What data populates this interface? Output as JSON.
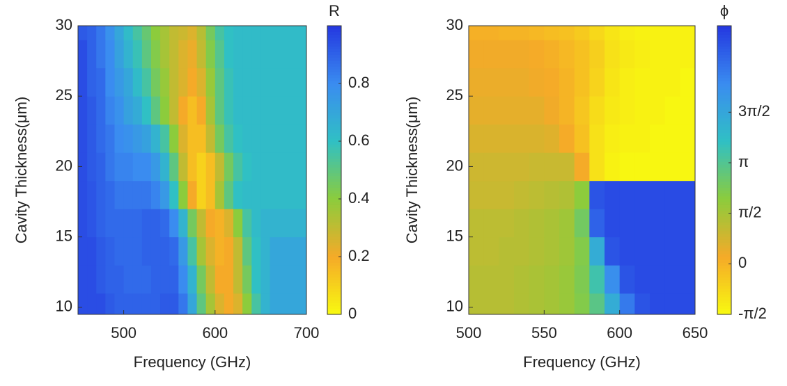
{
  "chart_data": [
    {
      "type": "heatmap",
      "xlabel": "Frequency (GHz)",
      "ylabel": "Cavity Thickness(μm)",
      "colorbar_label": "R",
      "x": [
        455,
        465,
        475,
        485,
        495,
        505,
        515,
        525,
        535,
        545,
        555,
        565,
        575,
        585,
        595,
        605,
        615,
        625,
        635,
        645,
        655,
        665,
        675,
        685,
        695
      ],
      "y": [
        10,
        12,
        14,
        16,
        18,
        20,
        22,
        24,
        26,
        28,
        30
      ],
      "values": [
        [
          0.95,
          0.95,
          0.95,
          0.92,
          0.9,
          0.9,
          0.9,
          0.9,
          0.9,
          0.92,
          0.92,
          0.85,
          0.7,
          0.5,
          0.35,
          0.25,
          0.2,
          0.25,
          0.4,
          0.55,
          0.65,
          0.7,
          0.7,
          0.7,
          0.7
        ],
        [
          0.95,
          0.95,
          0.92,
          0.9,
          0.9,
          0.88,
          0.88,
          0.88,
          0.9,
          0.9,
          0.9,
          0.8,
          0.65,
          0.45,
          0.3,
          0.2,
          0.2,
          0.3,
          0.45,
          0.6,
          0.65,
          0.7,
          0.7,
          0.7,
          0.7
        ],
        [
          0.95,
          0.95,
          0.92,
          0.9,
          0.88,
          0.88,
          0.88,
          0.9,
          0.9,
          0.9,
          0.88,
          0.75,
          0.55,
          0.35,
          0.25,
          0.18,
          0.2,
          0.3,
          0.5,
          0.6,
          0.65,
          0.7,
          0.7,
          0.7,
          0.7
        ],
        [
          0.95,
          0.93,
          0.9,
          0.88,
          0.88,
          0.88,
          0.88,
          0.9,
          0.9,
          0.88,
          0.8,
          0.65,
          0.45,
          0.3,
          0.2,
          0.18,
          0.25,
          0.4,
          0.55,
          0.62,
          0.65,
          0.65,
          0.65,
          0.65,
          0.65
        ],
        [
          0.95,
          0.93,
          0.9,
          0.88,
          0.85,
          0.85,
          0.85,
          0.85,
          0.82,
          0.75,
          0.6,
          0.4,
          0.2,
          0.1,
          0.15,
          0.35,
          0.5,
          0.6,
          0.62,
          0.62,
          0.62,
          0.62,
          0.62,
          0.62,
          0.62
        ],
        [
          0.95,
          0.92,
          0.9,
          0.85,
          0.82,
          0.82,
          0.8,
          0.8,
          0.75,
          0.65,
          0.5,
          0.3,
          0.15,
          0.1,
          0.15,
          0.3,
          0.45,
          0.55,
          0.6,
          0.62,
          0.62,
          0.62,
          0.62,
          0.62,
          0.62
        ],
        [
          0.95,
          0.92,
          0.88,
          0.85,
          0.8,
          0.78,
          0.75,
          0.72,
          0.65,
          0.55,
          0.4,
          0.25,
          0.15,
          0.15,
          0.3,
          0.45,
          0.55,
          0.6,
          0.62,
          0.62,
          0.62,
          0.62,
          0.62,
          0.62,
          0.62
        ],
        [
          0.95,
          0.92,
          0.88,
          0.82,
          0.78,
          0.72,
          0.68,
          0.6,
          0.5,
          0.4,
          0.3,
          0.2,
          0.15,
          0.2,
          0.35,
          0.5,
          0.58,
          0.62,
          0.62,
          0.62,
          0.62,
          0.62,
          0.62,
          0.62,
          0.62
        ],
        [
          0.95,
          0.9,
          0.88,
          0.8,
          0.75,
          0.7,
          0.62,
          0.55,
          0.45,
          0.38,
          0.3,
          0.25,
          0.2,
          0.25,
          0.38,
          0.5,
          0.58,
          0.62,
          0.62,
          0.62,
          0.62,
          0.62,
          0.62,
          0.62,
          0.62
        ],
        [
          0.95,
          0.9,
          0.85,
          0.8,
          0.72,
          0.65,
          0.58,
          0.5,
          0.42,
          0.35,
          0.3,
          0.25,
          0.22,
          0.3,
          0.42,
          0.52,
          0.6,
          0.62,
          0.62,
          0.62,
          0.62,
          0.62,
          0.62,
          0.62,
          0.62
        ],
        [
          0.92,
          0.9,
          0.85,
          0.78,
          0.7,
          0.62,
          0.55,
          0.48,
          0.4,
          0.35,
          0.3,
          0.28,
          0.25,
          0.32,
          0.45,
          0.55,
          0.6,
          0.62,
          0.62,
          0.62,
          0.62,
          0.62,
          0.62,
          0.62,
          0.62
        ]
      ],
      "xlim": [
        450,
        700
      ],
      "xticks": [
        500,
        600,
        700
      ],
      "ylim": [
        9.5,
        30
      ],
      "yticks": [
        10,
        15,
        20,
        25,
        30
      ],
      "clim": [
        0,
        1
      ],
      "cticks": [
        0,
        0.2,
        0.4,
        0.6,
        0.8
      ],
      "colormap": [
        "#f8fa10",
        "#f5aa28",
        "#8ccc3c",
        "#30c0c4",
        "#3a8cf0",
        "#2438e0"
      ]
    },
    {
      "type": "heatmap",
      "xlabel": "Frequency (GHz)",
      "ylabel": "Cavity Thickness(μm)",
      "colorbar_label": "ϕ",
      "x": [
        505,
        515,
        525,
        535,
        545,
        555,
        565,
        575,
        585,
        595,
        605,
        615,
        625,
        635,
        645
      ],
      "y": [
        10,
        12,
        14,
        16,
        18,
        20,
        22,
        24,
        26,
        28,
        30
      ],
      "values": [
        [
          1.3,
          1.3,
          1.3,
          1.4,
          1.5,
          1.6,
          1.8,
          2.2,
          3.0,
          4.5,
          6.0,
          6.8,
          7.0,
          7.0,
          7.0
        ],
        [
          1.3,
          1.3,
          1.3,
          1.4,
          1.5,
          1.6,
          1.8,
          2.3,
          3.5,
          5.5,
          6.8,
          7.0,
          7.0,
          7.0,
          7.0
        ],
        [
          1.2,
          1.2,
          1.3,
          1.3,
          1.4,
          1.5,
          1.7,
          2.2,
          4.5,
          6.8,
          7.0,
          7.0,
          7.0,
          7.0,
          7.0
        ],
        [
          1.2,
          1.2,
          1.2,
          1.3,
          1.4,
          1.5,
          1.7,
          2.5,
          6.5,
          7.0,
          7.0,
          7.0,
          7.0,
          7.0,
          7.0
        ],
        [
          1.0,
          1.0,
          1.0,
          1.1,
          1.2,
          1.3,
          1.4,
          2.0,
          6.8,
          7.0,
          7.0,
          7.0,
          7.0,
          7.0,
          7.0
        ],
        [
          0.9,
          0.9,
          0.9,
          0.9,
          1.0,
          1.0,
          1.0,
          0.2,
          -1.0,
          -1.4,
          -1.5,
          -1.5,
          -1.5,
          -1.5,
          -1.5
        ],
        [
          0.7,
          0.7,
          0.7,
          0.7,
          0.7,
          0.6,
          0.2,
          -0.3,
          -1.0,
          -1.3,
          -1.4,
          -1.4,
          -1.5,
          -1.5,
          -1.5
        ],
        [
          0.5,
          0.5,
          0.5,
          0.5,
          0.5,
          0.3,
          0,
          -0.4,
          -0.9,
          -1.2,
          -1.3,
          -1.4,
          -1.4,
          -1.5,
          -1.5
        ],
        [
          0.4,
          0.4,
          0.4,
          0.4,
          0.3,
          0.2,
          0,
          -0.3,
          -0.7,
          -1.1,
          -1.3,
          -1.4,
          -1.4,
          -1.4,
          -1.5
        ],
        [
          0.3,
          0.3,
          0.3,
          0.3,
          0.2,
          0.1,
          -0.1,
          -0.3,
          -0.6,
          -1.0,
          -1.2,
          -1.3,
          -1.4,
          -1.4,
          -1.4
        ],
        [
          0.1,
          0.1,
          0,
          0,
          -0.1,
          -0.2,
          -0.3,
          -0.5,
          -0.8,
          -1.1,
          -1.3,
          -1.4,
          -1.4,
          -1.4,
          -1.4
        ]
      ],
      "xlim": [
        500,
        650
      ],
      "xticks": [
        500,
        550,
        600,
        650
      ],
      "ylim": [
        9.5,
        30
      ],
      "yticks": [
        10,
        15,
        20,
        25,
        30
      ],
      "clim": [
        -1.5708,
        7.4
      ],
      "cticks": [
        {
          "value": -1.5708,
          "label": "-π/2"
        },
        {
          "value": 0,
          "label": "0"
        },
        {
          "value": 1.5708,
          "label": "π/2"
        },
        {
          "value": 3.1416,
          "label": "π"
        },
        {
          "value": 4.7124,
          "label": "3π/2"
        }
      ],
      "colormap": [
        "#f8fa10",
        "#f5aa28",
        "#8ccc3c",
        "#30c0c4",
        "#3a8cf0",
        "#2438e0"
      ]
    }
  ]
}
